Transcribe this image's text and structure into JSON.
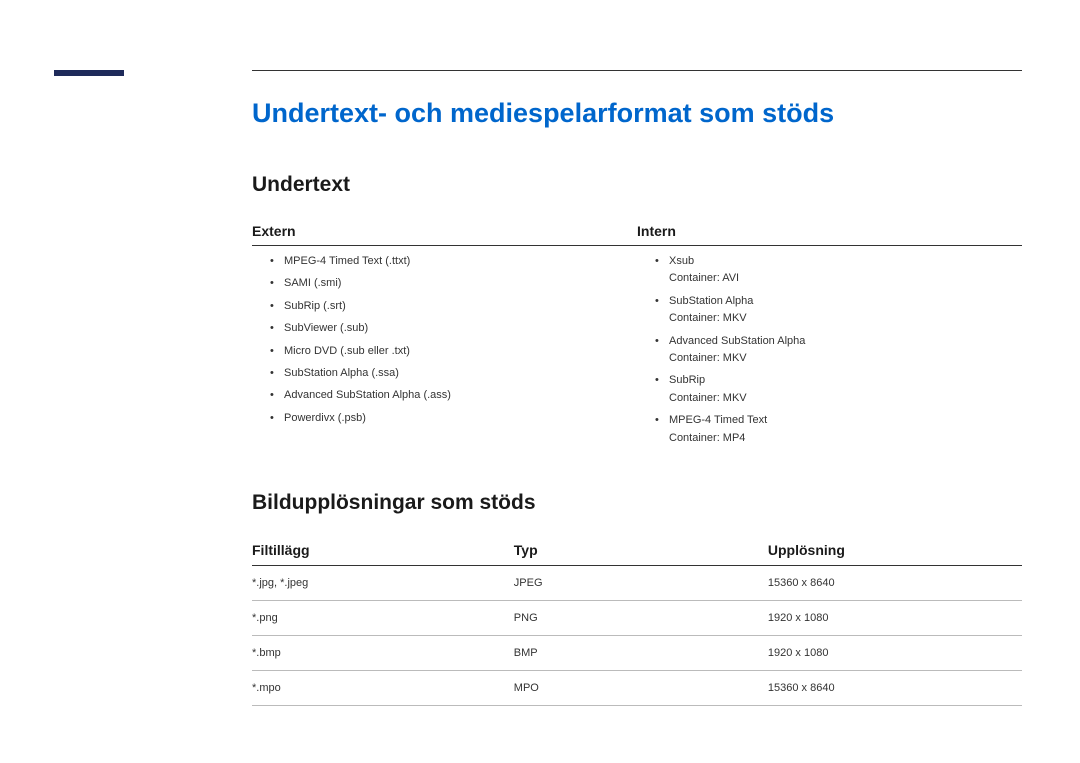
{
  "mainHeading": "Undertext- och mediespelarformat som stöds",
  "subtitleSection": {
    "heading": "Undertext",
    "colHeaders": {
      "left": "Extern",
      "right": "Intern"
    },
    "extern": [
      {
        "line1": "MPEG-4 Timed Text (.ttxt)"
      },
      {
        "line1": "SAMI (.smi)"
      },
      {
        "line1": "SubRip (.srt)"
      },
      {
        "line1": "SubViewer (.sub)"
      },
      {
        "line1": "Micro DVD (.sub eller .txt)"
      },
      {
        "line1": "SubStation Alpha (.ssa)"
      },
      {
        "line1": "Advanced SubStation Alpha (.ass)"
      },
      {
        "line1": "Powerdivx (.psb)"
      }
    ],
    "intern": [
      {
        "line1": "Xsub",
        "line2": "Container: AVI"
      },
      {
        "line1": "SubStation Alpha",
        "line2": "Container: MKV"
      },
      {
        "line1": "Advanced SubStation Alpha",
        "line2": "Container: MKV"
      },
      {
        "line1": "SubRip",
        "line2": "Container: MKV"
      },
      {
        "line1": "MPEG-4 Timed Text",
        "line2": "Container: MP4"
      }
    ]
  },
  "resolutionSection": {
    "heading": "Bildupplösningar som stöds",
    "columns": [
      "Filtillägg",
      "Typ",
      "Upplösning"
    ],
    "rows": [
      [
        "*.jpg, *.jpeg",
        "JPEG",
        "15360 x 8640"
      ],
      [
        "*.png",
        "PNG",
        "1920 x 1080"
      ],
      [
        "*.bmp",
        "BMP",
        "1920 x 1080"
      ],
      [
        "*.mpo",
        "MPO",
        "15360 x 8640"
      ]
    ]
  },
  "colors": {
    "headingBlue": "#0066cc",
    "sidebarNavy": "#1e2a5a",
    "textBlack": "#1a1a1a",
    "bodyText": "#333333",
    "divider": "#333333",
    "rowBorder": "#bbbbbb",
    "background": "#ffffff"
  }
}
